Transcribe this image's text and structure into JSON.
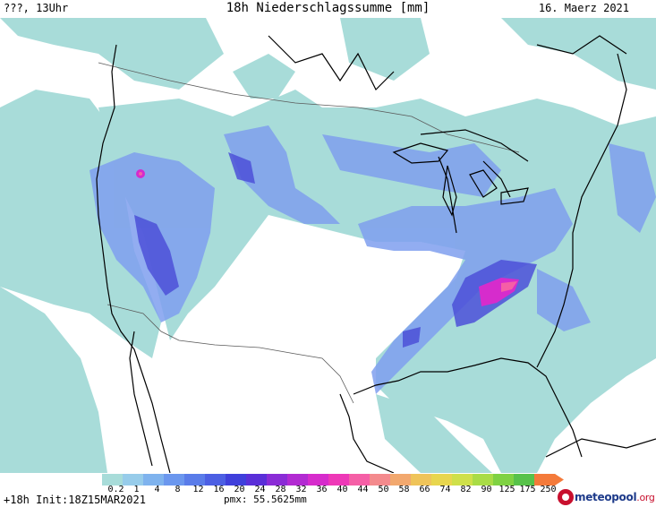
{
  "header": {
    "left": "???, 13Uhr",
    "center": "18h Niederschlagssumme [mm]",
    "right": "16. Maerz 2021"
  },
  "legend": {
    "ticks": [
      "0.2",
      "1",
      "4",
      "8",
      "12",
      "16",
      "20",
      "24",
      "28",
      "32",
      "36",
      "40",
      "44",
      "50",
      "58",
      "66",
      "74",
      "82",
      "90",
      "125",
      "175",
      "250"
    ],
    "colors": [
      "#a8dcd9",
      "#97ccea",
      "#7fb3ee",
      "#6b97ee",
      "#5a7ce9",
      "#4c5fe3",
      "#3f3fdb",
      "#5a2fd8",
      "#8a2cd6",
      "#b22bd2",
      "#d62ccc",
      "#ee38b7",
      "#f55fa6",
      "#f48a8d",
      "#f2a86e",
      "#efc45a",
      "#e8d64e",
      "#cfe04a",
      "#a9dc46",
      "#7fd243",
      "#57c24a",
      "#f47a3a"
    ]
  },
  "footer": {
    "init": "+18h Init:18Z15MAR2021",
    "pmx": "pmx: 55.5625mm"
  },
  "logo": {
    "name": "meteopool",
    "tld": ".org",
    "accent": "#c8102e",
    "brand": "#1d3a8a"
  },
  "map": {
    "background": "#ffffff",
    "light_precip": "#a8dcd9",
    "medium_precip": "#7f9fee",
    "heavy_precip": "#4c50d8",
    "extreme_precip": "#d62ccc",
    "max_precip": "#f55fa6",
    "coastline": "#000000",
    "borders": "#5a5a5a"
  }
}
